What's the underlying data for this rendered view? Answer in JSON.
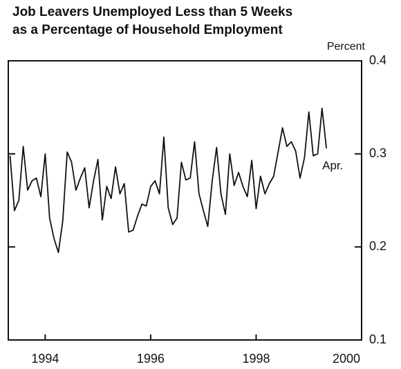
{
  "chart_data": {
    "type": "line",
    "title": [
      "Job Leavers Unemployed Less than 5 Weeks",
      "as a Percentage of Household Employment"
    ],
    "y_label": "Percent",
    "annotation": "Apr.",
    "x": [
      1993.333,
      1993.417,
      1993.5,
      1993.583,
      1993.667,
      1993.75,
      1993.833,
      1993.917,
      1994,
      1994.083,
      1994.167,
      1994.25,
      1994.333,
      1994.417,
      1994.5,
      1994.583,
      1994.667,
      1994.75,
      1994.833,
      1994.917,
      1995,
      1995.083,
      1995.167,
      1995.25,
      1995.333,
      1995.417,
      1995.5,
      1995.583,
      1995.667,
      1995.75,
      1995.833,
      1995.917,
      1996,
      1996.083,
      1996.167,
      1996.25,
      1996.333,
      1996.417,
      1996.5,
      1996.583,
      1996.667,
      1996.75,
      1996.833,
      1996.917,
      1997,
      1997.083,
      1997.167,
      1997.25,
      1997.333,
      1997.417,
      1997.5,
      1997.583,
      1997.667,
      1997.75,
      1997.833,
      1997.917,
      1998,
      1998.083,
      1998.167,
      1998.25,
      1998.333,
      1998.417,
      1998.5,
      1998.583,
      1998.667,
      1998.75,
      1998.833,
      1998.917,
      1999,
      1999.083,
      1999.167,
      1999.25,
      1999.333
    ],
    "series": [
      {
        "color": "#111111",
        "values": [
          0.298,
          0.239,
          0.25,
          0.308,
          0.261,
          0.271,
          0.274,
          0.254,
          0.3,
          0.231,
          0.209,
          0.194,
          0.228,
          0.302,
          0.291,
          0.261,
          0.274,
          0.285,
          0.242,
          0.271,
          0.294,
          0.229,
          0.265,
          0.252,
          0.286,
          0.257,
          0.268,
          0.216,
          0.218,
          0.233,
          0.246,
          0.244,
          0.265,
          0.271,
          0.257,
          0.318,
          0.242,
          0.224,
          0.231,
          0.291,
          0.272,
          0.274,
          0.313,
          0.257,
          0.239,
          0.222,
          0.271,
          0.307,
          0.257,
          0.235,
          0.3,
          0.266,
          0.28,
          0.265,
          0.254,
          0.293,
          0.241,
          0.276,
          0.257,
          0.268,
          0.276,
          0.302,
          0.328,
          0.308,
          0.313,
          0.303,
          0.274,
          0.296,
          0.345,
          0.298,
          0.3,
          0.349,
          0.306
        ]
      }
    ],
    "xlim": [
      1993.3,
      2000
    ],
    "xticks": [
      1994,
      1996,
      1998,
      2000
    ],
    "ylim": [
      0.1,
      0.4
    ],
    "yticks": [
      0.1,
      0.2,
      0.3,
      0.4
    ]
  }
}
